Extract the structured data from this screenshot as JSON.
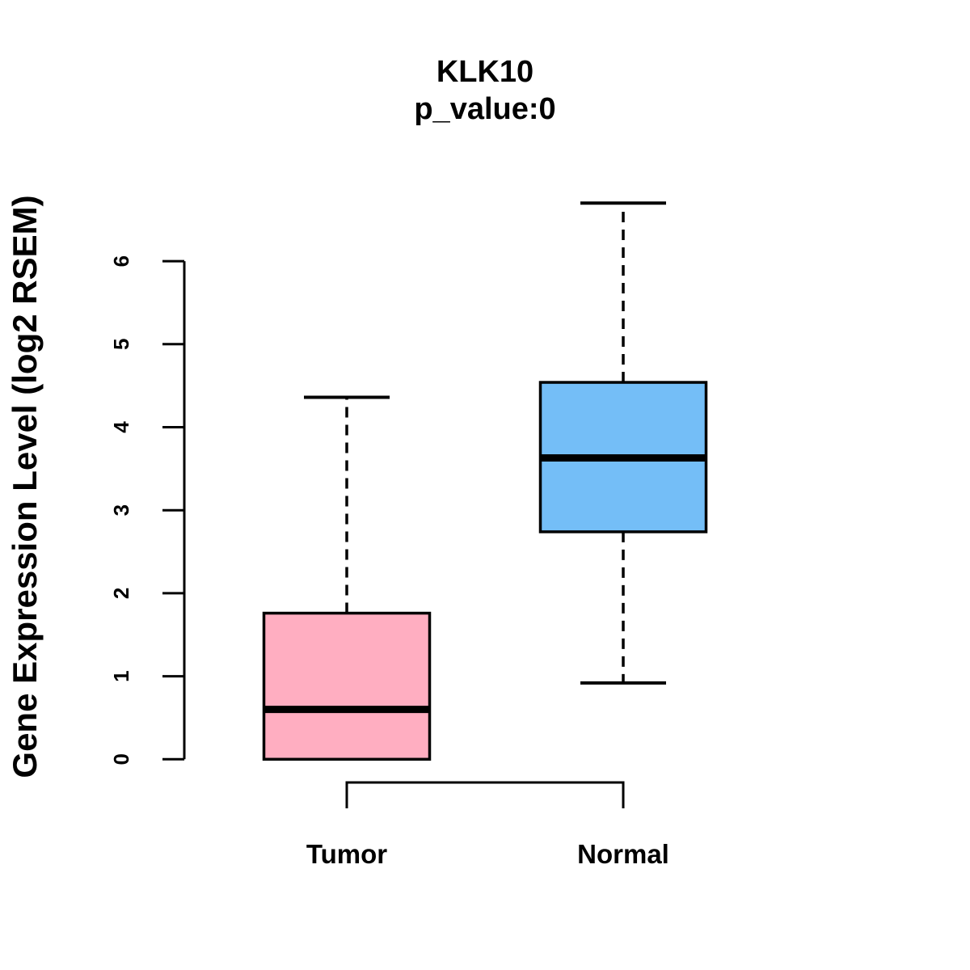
{
  "chart_data": {
    "type": "boxplot",
    "title": "KLK10",
    "subtitle": "p_value:0",
    "ylabel": "Gene Expression Level (log2 RSEM)",
    "xlabel": "",
    "categories": [
      "Tumor",
      "Normal"
    ],
    "series": [
      {
        "name": "Tumor",
        "min": 0,
        "q1": 0,
        "median": 0.6,
        "q3": 1.76,
        "max": 4.36,
        "fill_color": "#ffaec1"
      },
      {
        "name": "Normal",
        "min": 0.92,
        "q1": 2.74,
        "median": 3.63,
        "q3": 4.54,
        "max": 6.7,
        "fill_color": "#74bef7"
      }
    ],
    "yticks": [
      0,
      1,
      2,
      3,
      4,
      5,
      6
    ],
    "ylim": [
      0,
      6.7
    ],
    "grid": false,
    "legend_position": "none",
    "line_color": "#000000",
    "whisker_style": "dashed",
    "comparison_bracket": {
      "from": "Tumor",
      "to": "Normal"
    }
  }
}
